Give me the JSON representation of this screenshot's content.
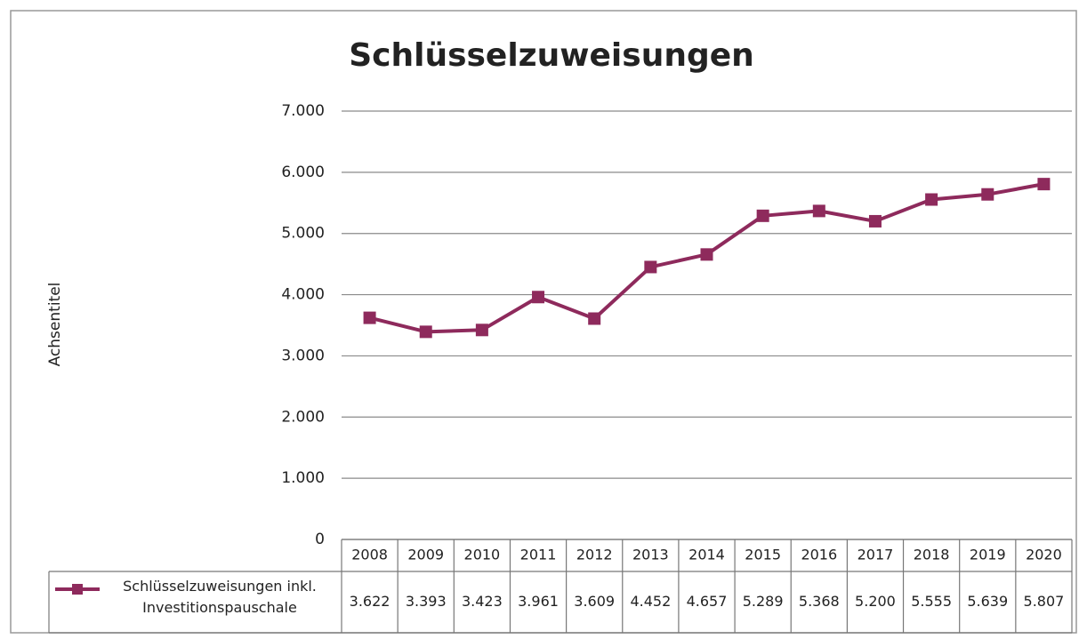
{
  "chart_data": {
    "type": "line",
    "title": "Schlüsselzuweisungen",
    "y_label": "Achsentitel",
    "categories": [
      "2008",
      "2009",
      "2010",
      "2011",
      "2012",
      "2013",
      "2014",
      "2015",
      "2016",
      "2017",
      "2018",
      "2019",
      "2020"
    ],
    "series": [
      {
        "name": "Schlüsselzuweisungen inkl. Investitionspauschale",
        "color": "#8e2a5c",
        "values": [
          3622,
          3393,
          3423,
          3961,
          3609,
          4452,
          4657,
          5289,
          5368,
          5200,
          5555,
          5639,
          5807
        ],
        "value_labels": [
          "3.622",
          "3.393",
          "3.423",
          "3.961",
          "3.609",
          "4.452",
          "4.657",
          "5.289",
          "5.368",
          "5.200",
          "5.555",
          "5.639",
          "5.807"
        ]
      }
    ],
    "ylim": [
      0,
      7000
    ],
    "yticks": [
      0,
      {
        "value": 1000,
        "label": "1.000"
      },
      {
        "value": 2000,
        "label": "2.000"
      },
      {
        "value": 3000,
        "label": "3.000"
      },
      {
        "value": 4000,
        "label": "4.000"
      },
      {
        "value": 5000,
        "label": "5.000"
      },
      {
        "value": 6000,
        "label": "6.000"
      },
      {
        "value": 7000,
        "label": "7.000"
      }
    ],
    "grid": true
  }
}
